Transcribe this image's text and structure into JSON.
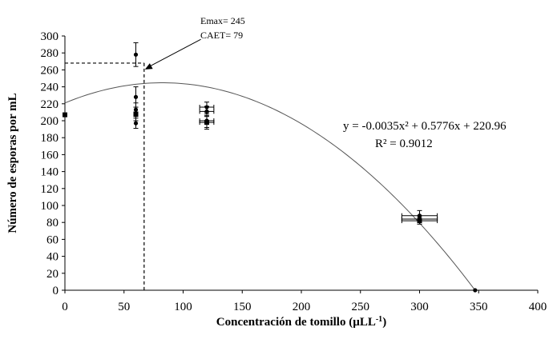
{
  "chart_data": {
    "type": "scatter",
    "xlabel": "Concentración de tomillo (µLL",
    "xlabel_sup": "-1",
    "xlabel_close": ")",
    "ylabel": "Número de esporas por mL",
    "xlim": [
      0,
      400
    ],
    "ylim": [
      0,
      300
    ],
    "x_ticks": [
      0,
      50,
      100,
      150,
      200,
      250,
      300,
      350,
      400
    ],
    "y_ticks": [
      0,
      20,
      40,
      60,
      80,
      100,
      120,
      140,
      160,
      180,
      200,
      220,
      240,
      260,
      280,
      300
    ],
    "points": [
      {
        "x": 0,
        "y": 207,
        "ex": 0,
        "ey": 0,
        "marker": "square"
      },
      {
        "x": 60,
        "y": 278,
        "ex": 0,
        "ey": 14,
        "marker": "dot"
      },
      {
        "x": 60,
        "y": 228,
        "ex": 0,
        "ey": 12,
        "marker": "dot"
      },
      {
        "x": 60,
        "y": 213,
        "ex": 0,
        "ey": 8,
        "marker": "dot"
      },
      {
        "x": 60,
        "y": 208,
        "ex": 0,
        "ey": 8,
        "marker": "square"
      },
      {
        "x": 60,
        "y": 197,
        "ex": 0,
        "ey": 6,
        "marker": "dot"
      },
      {
        "x": 120,
        "y": 216,
        "ex": 6,
        "ey": 6,
        "marker": "dot"
      },
      {
        "x": 120,
        "y": 211,
        "ex": 6,
        "ey": 6,
        "marker": "dot"
      },
      {
        "x": 120,
        "y": 200,
        "ex": 6,
        "ey": 8,
        "marker": "dot"
      },
      {
        "x": 120,
        "y": 198,
        "ex": 6,
        "ey": 8,
        "marker": "square"
      },
      {
        "x": 300,
        "y": 88,
        "ex": 15,
        "ey": 6,
        "marker": "dot"
      },
      {
        "x": 300,
        "y": 84,
        "ex": 15,
        "ey": 4,
        "marker": "dot"
      },
      {
        "x": 300,
        "y": 82,
        "ex": 15,
        "ey": 4,
        "marker": "square"
      },
      {
        "x": 347,
        "y": 0,
        "ex": 0,
        "ey": 0,
        "marker": "dot"
      }
    ],
    "fit": {
      "a": -0.0035,
      "b": 0.5776,
      "c": 220.96,
      "x_start": 0,
      "x_end": 347
    },
    "equation": "y = -0.0035x² + 0.5776x + 220.96",
    "r2": "R² = 0.9012",
    "annotation": {
      "emax_label": "Emax= 245",
      "caet_label": "CAET= 79",
      "emax_line_y": 268,
      "caet_line_x": 67,
      "arrow_tail_x": 115,
      "arrow_tail_y": 296
    }
  }
}
